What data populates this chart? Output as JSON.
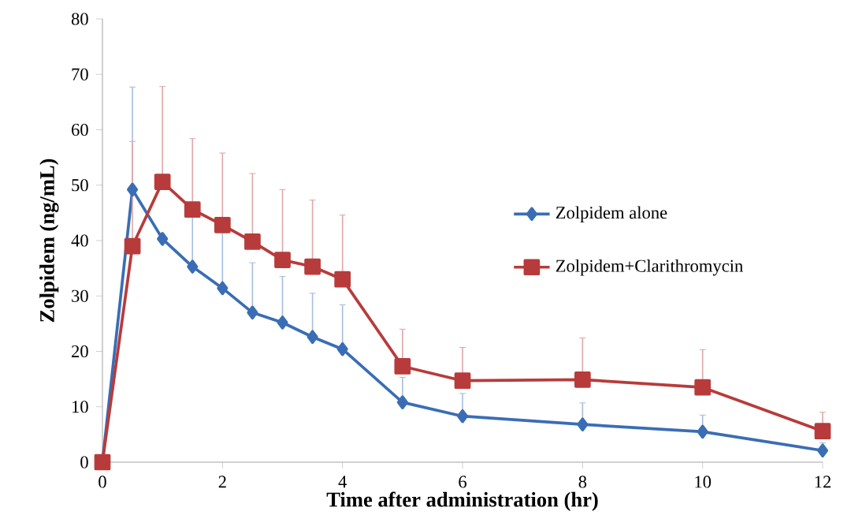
{
  "chart_data": {
    "type": "line",
    "xlabel": "Time after administration (hr)",
    "ylabel": "Zolpidem (ng/mL)",
    "x": [
      0,
      0.5,
      1,
      1.5,
      2,
      2.5,
      3,
      3.5,
      4,
      5,
      6,
      8,
      10,
      12
    ],
    "xlim": [
      0,
      12
    ],
    "xticks": [
      0,
      2,
      4,
      6,
      8,
      10,
      12
    ],
    "ylim": [
      0,
      80
    ],
    "yticks": [
      0,
      10,
      20,
      30,
      40,
      50,
      60,
      70,
      80
    ],
    "grid": false,
    "legend": "right",
    "line_style": "solid",
    "series": [
      {
        "name": "Zolpidem alone",
        "color": "#3a6db5",
        "marker": "diamond",
        "values": [
          0,
          49.2,
          40.3,
          35.3,
          31.4,
          27,
          25.2,
          22.6,
          20.4,
          10.8,
          8.3,
          6.8,
          5.5,
          2.1
        ],
        "errors": [
          null,
          [
            49.2,
            67.7
          ],
          null,
          [
            35.3,
            44.5
          ],
          [
            31.4,
            41.5
          ],
          [
            27,
            36
          ],
          [
            25.2,
            33.5
          ],
          [
            22.6,
            30.5
          ],
          [
            20.4,
            28.4
          ],
          [
            10.8,
            15.3
          ],
          [
            8.3,
            12.4
          ],
          [
            6.8,
            10.7
          ],
          [
            5.5,
            8.5
          ],
          [
            2.1,
            3.5
          ]
        ]
      },
      {
        "name": "Zolpidem+Clarithromycin",
        "color": "#b83b3b",
        "marker": "square",
        "values": [
          0,
          39,
          50.6,
          45.6,
          42.8,
          39.8,
          36.5,
          35.3,
          33,
          17.3,
          14.7,
          14.9,
          13.5,
          5.6
        ],
        "errors": [
          null,
          [
            39,
            57.9
          ],
          [
            50.6,
            67.8
          ],
          [
            45.6,
            58.4
          ],
          [
            42.8,
            55.8
          ],
          [
            39.8,
            52.1
          ],
          [
            36.5,
            49.2
          ],
          [
            35.3,
            47.3
          ],
          [
            33,
            44.6
          ],
          [
            17.3,
            24
          ],
          [
            14.7,
            20.7
          ],
          [
            14.9,
            22.4
          ],
          [
            13.5,
            20.3
          ],
          [
            5.6,
            9
          ]
        ]
      }
    ]
  }
}
